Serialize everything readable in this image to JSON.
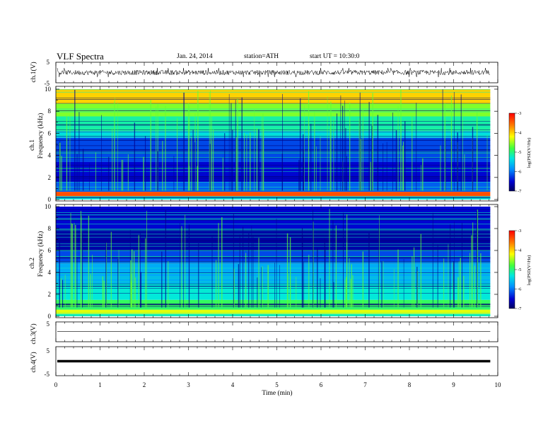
{
  "header": {
    "title": "VLF  Spectra",
    "date": "Jan. 24, 2014",
    "station": "station=ATH",
    "start": "start  UT =   10:30:0"
  },
  "chart_data": [
    {
      "type": "line",
      "ylabel": "ch.1(V)",
      "ylim": [
        -5,
        5
      ],
      "y_ticks": [
        "5",
        "-5"
      ],
      "xlim": [
        0,
        10
      ],
      "data_end_min": 9.83,
      "baseline": 0,
      "series": [
        {
          "amplitude_typical": 1.2,
          "spike_max": 2.2,
          "color": "#000000"
        }
      ]
    },
    {
      "type": "heatmap",
      "ylabel": "Frequency  (kHz)",
      "channel_label": "ch.1",
      "ylim": [
        0,
        10
      ],
      "y_ticks": [
        "0",
        "2",
        "4",
        "6",
        "8",
        "10"
      ],
      "xlim": [
        0,
        10
      ],
      "data_end_min": 9.83,
      "colorbar": {
        "label": "log(PSD(V²/Hz)",
        "ticks": [
          "-3",
          "-4",
          "-5",
          "-6",
          "-7"
        ],
        "range": [
          -7,
          -3
        ]
      },
      "bands": [
        {
          "f_low": 0,
          "f_high": 0.3,
          "log_psd": -5.3
        },
        {
          "f_low": 0.3,
          "f_high": 0.7,
          "log_psd": -3.4
        },
        {
          "f_low": 0.7,
          "f_high": 1.6,
          "log_psd": -6.1
        },
        {
          "f_low": 1.6,
          "f_high": 3.4,
          "log_psd": -6.5
        },
        {
          "f_low": 3.4,
          "f_high": 5.6,
          "log_psd": -6.2
        },
        {
          "f_low": 5.6,
          "f_high": 6.2,
          "log_psd": -5.4
        },
        {
          "f_low": 6.2,
          "f_high": 7.5,
          "log_psd": -5.1
        },
        {
          "f_low": 7.5,
          "f_high": 8.7,
          "log_psd": -4.6
        },
        {
          "f_low": 8.7,
          "f_high": 10,
          "log_psd": -4.0
        }
      ]
    },
    {
      "type": "heatmap",
      "ylabel": "Frequency  (kHz)",
      "channel_label": "ch.2",
      "ylim": [
        0,
        10
      ],
      "y_ticks": [
        "0",
        "2",
        "4",
        "6",
        "8",
        "10"
      ],
      "xlim": [
        0,
        10
      ],
      "data_end_min": 9.83,
      "colorbar": {
        "label": "log(PSD(V²/Hz)",
        "ticks": [
          "-3",
          "-4",
          "-5",
          "-6",
          "-7"
        ],
        "range": [
          -7,
          -3
        ]
      },
      "bands": [
        {
          "f_low": 0,
          "f_high": 0.2,
          "log_psd": -5.2
        },
        {
          "f_low": 0.2,
          "f_high": 0.6,
          "log_psd": -4.3
        },
        {
          "f_low": 0.6,
          "f_high": 1.5,
          "log_psd": -4.9
        },
        {
          "f_low": 1.5,
          "f_high": 3.0,
          "log_psd": -5.3
        },
        {
          "f_low": 3.0,
          "f_high": 4.8,
          "log_psd": -5.7
        },
        {
          "f_low": 4.8,
          "f_high": 6.0,
          "log_psd": -6.2
        },
        {
          "f_low": 6.0,
          "f_high": 8.0,
          "log_psd": -6.7
        },
        {
          "f_low": 8.0,
          "f_high": 10,
          "log_psd": -6.5
        }
      ]
    },
    {
      "type": "line",
      "ylabel": "ch.3(V)",
      "ylim": [
        -5,
        5
      ],
      "y_ticks": [
        "5"
      ],
      "xlim": [
        0,
        10
      ],
      "data_end_min": 9.83,
      "series": [
        {
          "constant": 0.2,
          "color": "#000000"
        }
      ]
    },
    {
      "type": "line",
      "ylabel": "ch.4(V)",
      "ylim": [
        -5,
        5
      ],
      "y_ticks": [
        "5",
        "-5"
      ],
      "xlim": [
        0,
        10
      ],
      "data_end_min": 9.83,
      "series": [
        {
          "constant": 0,
          "color": "#000000"
        }
      ]
    }
  ],
  "x_axis": {
    "label": "Time  (min)",
    "ticks": [
      "0",
      "1",
      "2",
      "3",
      "4",
      "5",
      "6",
      "7",
      "8",
      "9",
      "10"
    ]
  }
}
